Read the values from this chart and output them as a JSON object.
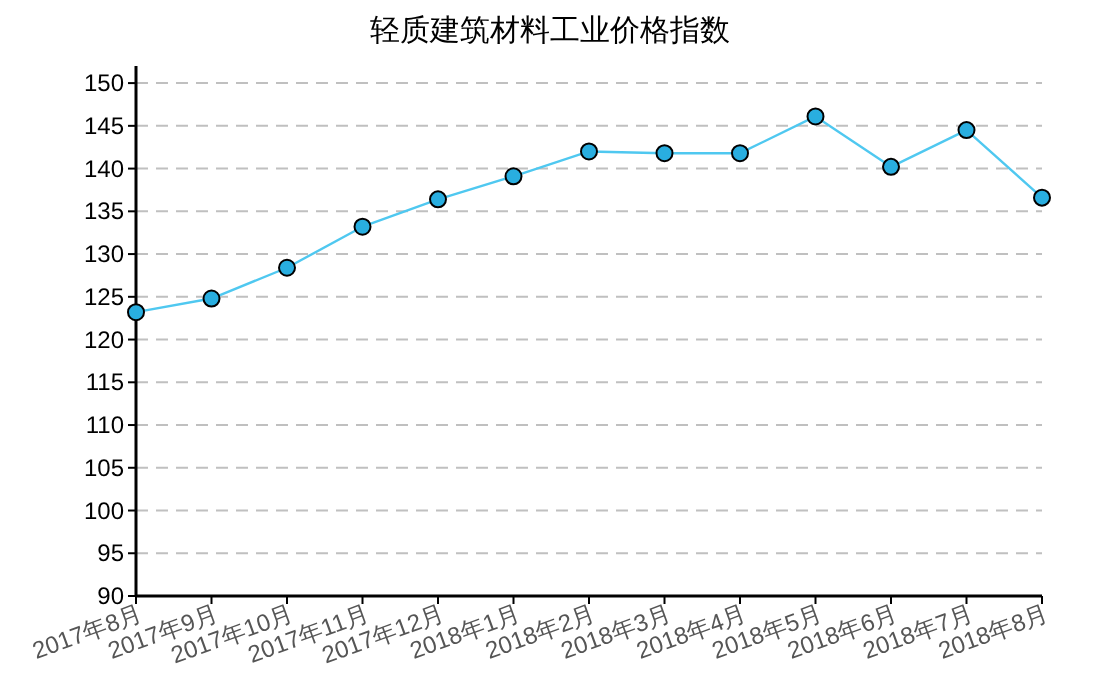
{
  "chart_data": {
    "type": "line",
    "title": "轻质建筑材料工业价格指数",
    "categories": [
      "2017年8月",
      "2017年9月",
      "2017年10月",
      "2017年11月",
      "2017年12月",
      "2018年1月",
      "2018年2月",
      "2018年3月",
      "2018年4月",
      "2018年5月",
      "2018年6月",
      "2018年7月",
      "2018年8月"
    ],
    "series": [
      {
        "color": "#4fc8f0",
        "values": [
          123.2,
          124.8,
          128.4,
          133.2,
          136.4,
          139.1,
          142.0,
          141.8,
          141.8,
          146.1,
          140.2,
          144.5,
          136.6
        ]
      }
    ],
    "ylim": [
      90,
      152
    ],
    "yticks": [
      90,
      95,
      100,
      105,
      110,
      115,
      120,
      125,
      130,
      135,
      140,
      145,
      150
    ],
    "grid": "y",
    "marker": "circle",
    "line_style": "solid"
  }
}
